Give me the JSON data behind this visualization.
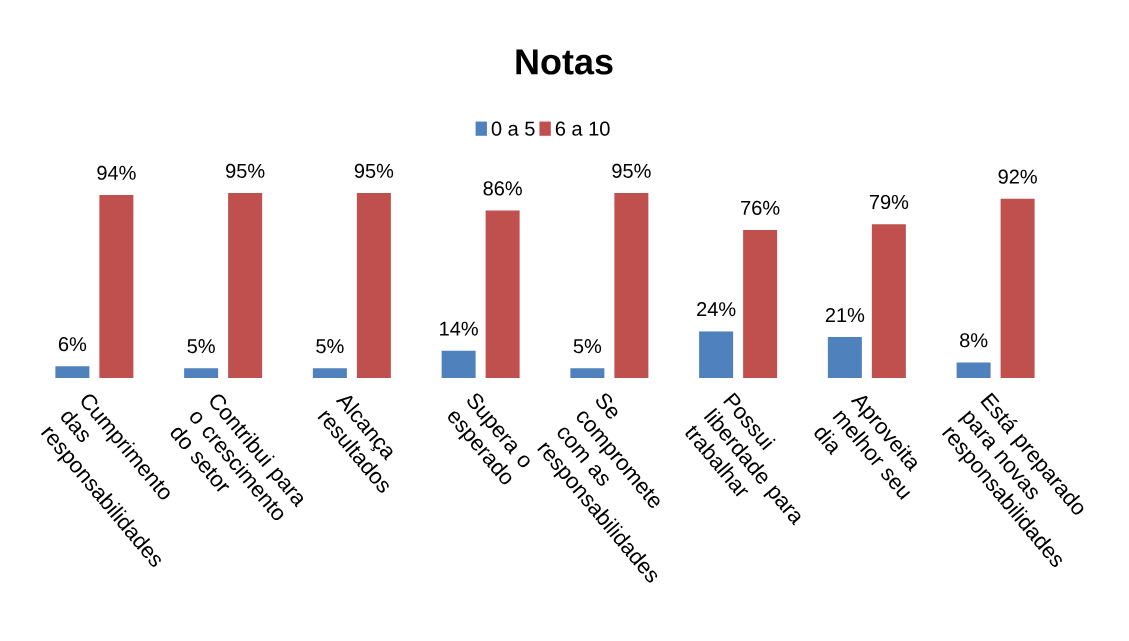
{
  "chart_data": {
    "type": "bar",
    "title": "Notas",
    "categories": [
      "Cumprimento das responsabilidades",
      "Contribui para o crescimento do setor",
      "Alcança resultados",
      "Supera o esperado",
      "Se compromete com as responsabilidades",
      "Possui liberdade para trabalhar",
      "Aproveita melhor seu dia",
      "Está preparado para novas responsabilidades"
    ],
    "series": [
      {
        "name": "0 a 5",
        "color": "#4f81bd",
        "values": [
          6,
          5,
          5,
          14,
          5,
          24,
          21,
          8
        ],
        "value_labels": [
          "6%",
          "5%",
          "5%",
          "14%",
          "5%",
          "24%",
          "21%",
          "8%"
        ]
      },
      {
        "name": "6 a 10",
        "color": "#c0504d",
        "values": [
          94,
          95,
          95,
          86,
          95,
          76,
          79,
          92
        ],
        "value_labels": [
          "94%",
          "95%",
          "95%",
          "86%",
          "95%",
          "76%",
          "79%",
          "92%"
        ]
      }
    ],
    "legend": "top"
  }
}
